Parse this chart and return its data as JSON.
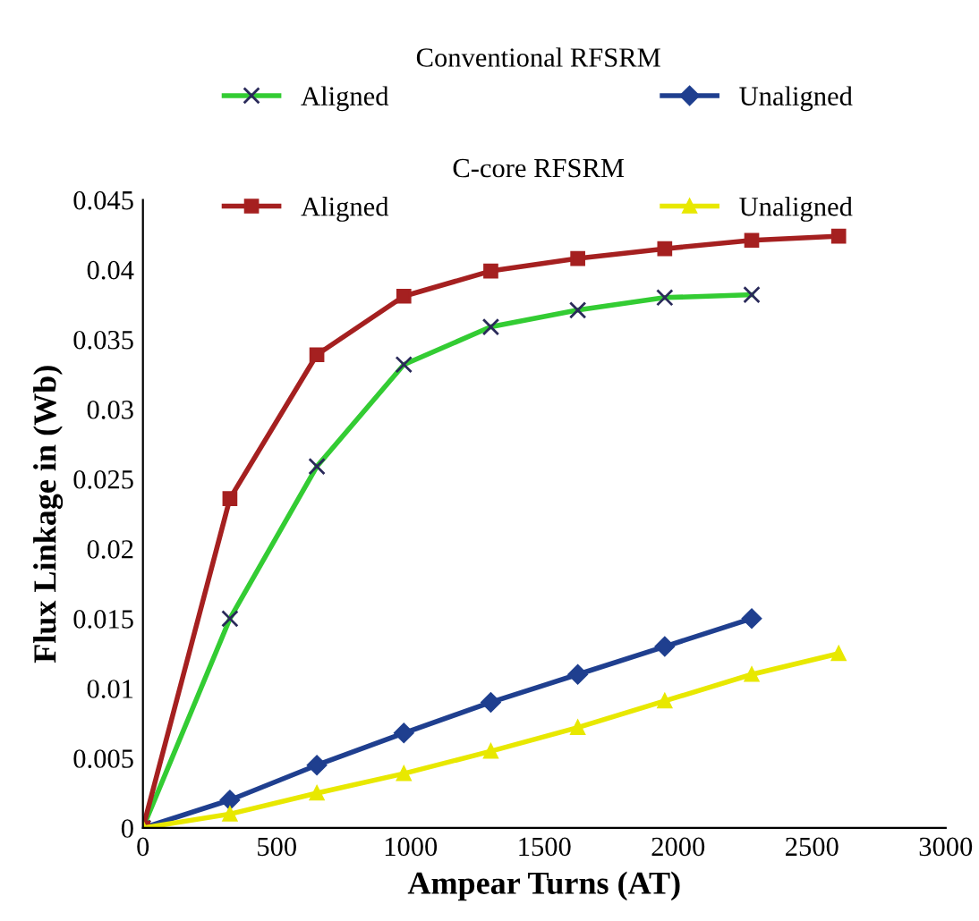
{
  "chart_data": {
    "type": "line",
    "xlabel": "Ampear Turns (AT)",
    "ylabel": "Flux Linkage in (Wb)",
    "annotations": [
      "Conventional RFSRM",
      "C-core RFSRM"
    ],
    "xlim": [
      0,
      3000
    ],
    "xticks": [
      0,
      500,
      1000,
      1500,
      2000,
      2500,
      3000
    ],
    "ylim": [
      0,
      0.045
    ],
    "yticks": [
      0,
      0.005,
      0.01,
      0.015,
      0.02,
      0.025,
      0.03,
      0.035,
      0.04,
      0.045
    ],
    "grid": false,
    "legend": "top",
    "line_style": "solid",
    "series": [
      {
        "name": "Aligned",
        "color": "#33cc33",
        "marker": "cross",
        "x": [
          0,
          325,
          650,
          975,
          1300,
          1625,
          1950,
          2275
        ],
        "values": [
          0,
          0.015,
          0.0259,
          0.0332,
          0.0359,
          0.0371,
          0.038,
          0.0382
        ]
      },
      {
        "name": "Unaligned",
        "color": "#1f3f8f",
        "marker": "diamond",
        "x": [
          0,
          325,
          650,
          975,
          1300,
          1625,
          1950,
          2275
        ],
        "values": [
          0,
          0.002,
          0.0045,
          0.0068,
          0.009,
          0.011,
          0.013,
          0.015
        ]
      },
      {
        "name": "Aligned",
        "color": "#a52020",
        "marker": "square",
        "x": [
          0,
          325,
          650,
          975,
          1300,
          1625,
          1950,
          2275,
          2600
        ],
        "values": [
          0,
          0.0236,
          0.0339,
          0.0381,
          0.0399,
          0.0408,
          0.0415,
          0.0421,
          0.0424
        ]
      },
      {
        "name": "Unaligned",
        "color": "#e8e800",
        "marker": "triangle",
        "x": [
          0,
          325,
          650,
          975,
          1300,
          1625,
          1950,
          2275,
          2600
        ],
        "values": [
          0,
          0.001,
          0.0025,
          0.0039,
          0.0055,
          0.0072,
          0.0091,
          0.011,
          0.0125
        ]
      }
    ]
  }
}
